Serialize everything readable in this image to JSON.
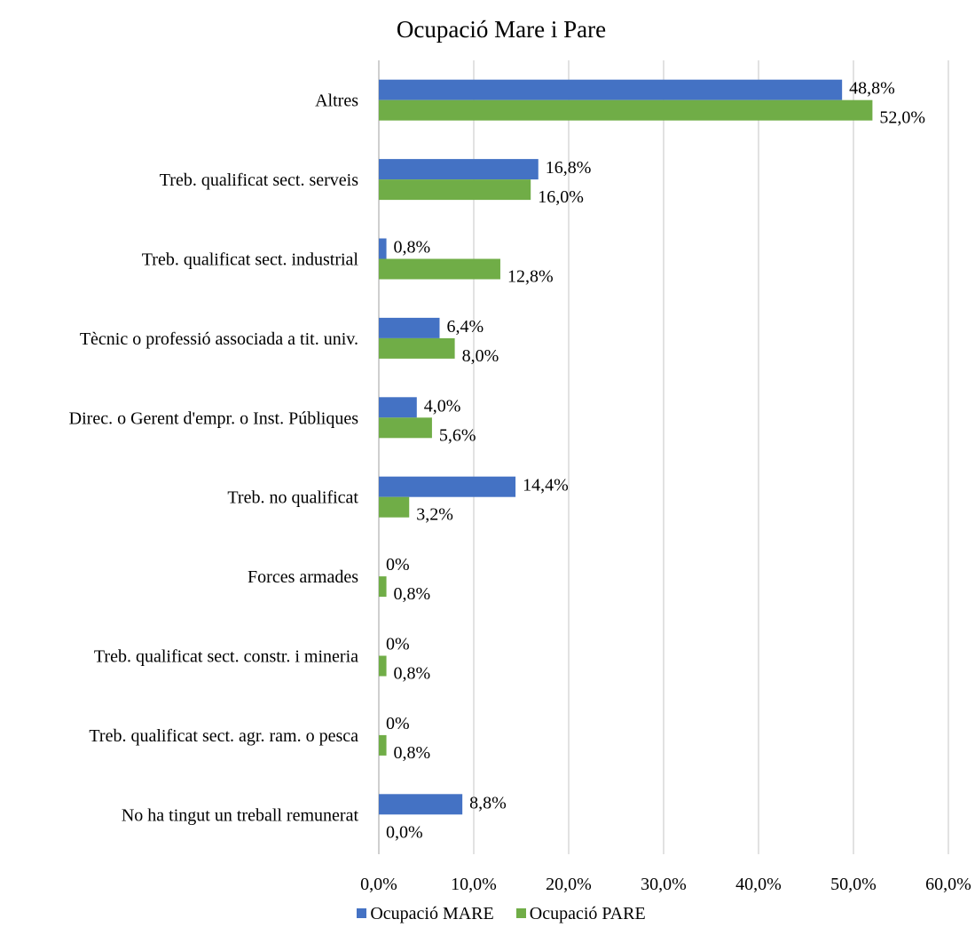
{
  "chart_data": {
    "type": "bar",
    "orientation": "horizontal",
    "title": "Ocupació Mare i Pare",
    "categories": [
      "Altres",
      "Treb. qualificat sect. serveis",
      "Treb. qualificat sect. industrial",
      "Tècnic o professió associada a tit. univ.",
      "Direc. o Gerent d'empr. o Inst. Públiques",
      "Treb. no qualificat",
      "Forces armades",
      "Treb. qualificat sect. constr. i mineria",
      "Treb. qualificat sect. agr. ram. o pesca",
      "No ha tingut un treball remunerat"
    ],
    "series": [
      {
        "name": "Ocupació MARE",
        "color": "#4472C4",
        "values": [
          48.8,
          16.8,
          0.8,
          6.4,
          4.0,
          14.4,
          0,
          0,
          0,
          8.8
        ],
        "labels": [
          "48,8%",
          "16,8%",
          "0,8%",
          "6,4%",
          "4,0%",
          "14,4%",
          "0%",
          "0%",
          "0%",
          "8,8%"
        ]
      },
      {
        "name": "Ocupació PARE",
        "color": "#70AD47",
        "values": [
          52.0,
          16.0,
          12.8,
          8.0,
          5.6,
          3.2,
          0.8,
          0.8,
          0.8,
          0.0
        ],
        "labels": [
          "52,0%",
          "16,0%",
          "12,8%",
          "8,0%",
          "5,6%",
          "3,2%",
          "0,8%",
          "0,8%",
          "0,8%",
          "0,0%"
        ]
      }
    ],
    "xlim": [
      0,
      60
    ],
    "xticks": [
      "0,0%",
      "10,0%",
      "20,0%",
      "30,0%",
      "40,0%",
      "50,0%",
      "60,0%"
    ],
    "grid": true,
    "legend": "bottom"
  }
}
